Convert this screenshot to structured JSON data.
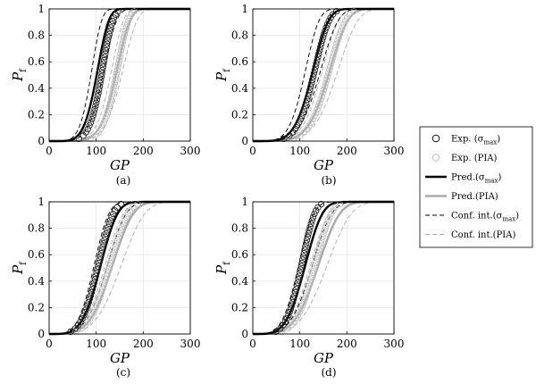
{
  "figure": {
    "legend": {
      "placement": "right",
      "entries": [
        {
          "label": "Exp. (σ",
          "sub": "max",
          "tail": ")",
          "kind": "marker",
          "color": "#111111"
        },
        {
          "label": "Exp. (PIA)",
          "sub": "",
          "tail": "",
          "kind": "marker",
          "color": "#bbbbbb"
        },
        {
          "label": "Pred.(σ",
          "sub": "max",
          "tail": ")",
          "kind": "solid",
          "color": "#000000"
        },
        {
          "label": "Pred.(PIA)",
          "sub": "",
          "tail": "",
          "kind": "solid",
          "color": "#aaaaaa"
        },
        {
          "label": "Conf. int.(σ",
          "sub": "max",
          "tail": ")",
          "kind": "dashed",
          "color": "#000000"
        },
        {
          "label": "Conf. int.(PIA)",
          "sub": "",
          "tail": "",
          "kind": "dashed",
          "color": "#aaaaaa"
        }
      ]
    }
  },
  "chart_data": [
    {
      "type": "line",
      "caption": "(a)",
      "xlabel": "GP",
      "ylabel": "P",
      "ylabel_sub": "f",
      "xlim": [
        0,
        300
      ],
      "ylim": [
        0,
        1
      ],
      "xticks": [
        0,
        100,
        200,
        300
      ],
      "yticks": [
        0,
        0.2,
        0.4,
        0.6,
        0.8,
        1
      ],
      "ytick_labels": [
        "0",
        "0.2",
        "0.4",
        "0.6",
        "0.8",
        "1"
      ],
      "grid": true,
      "weibull": {
        "pred_sigma": {
          "m": 5.5,
          "s": 108
        },
        "pred_pia": {
          "m": 6.5,
          "s": 150
        },
        "ci_sigma_lo": {
          "m": 5.5,
          "s": 95
        },
        "ci_sigma_hi": {
          "m": 5.5,
          "s": 122
        },
        "ci_pia_lo": {
          "m": 6.5,
          "s": 138
        },
        "ci_pia_hi": {
          "m": 6.5,
          "s": 163
        }
      },
      "exp_sigma": {
        "m": 6.5,
        "s": 118,
        "n": 40
      },
      "exp_pia": {
        "m": 7.5,
        "s": 150,
        "n": 40
      }
    },
    {
      "type": "line",
      "caption": "(b)",
      "xlabel": "GP",
      "ylabel": "P",
      "ylabel_sub": "f",
      "xlim": [
        0,
        300
      ],
      "ylim": [
        0,
        1
      ],
      "xticks": [
        0,
        100,
        200,
        300
      ],
      "yticks": [
        0,
        0.2,
        0.4,
        0.6,
        0.8,
        1
      ],
      "ytick_labels": [
        "0",
        "0.2",
        "0.4",
        "0.6",
        "0.8",
        "1"
      ],
      "grid": true,
      "weibull": {
        "pred_sigma": {
          "m": 5.0,
          "s": 135
        },
        "pred_pia": {
          "m": 5.5,
          "s": 172
        },
        "ci_sigma_lo": {
          "m": 5.0,
          "s": 118
        },
        "ci_sigma_hi": {
          "m": 5.0,
          "s": 152
        },
        "ci_pia_lo": {
          "m": 5.5,
          "s": 155
        },
        "ci_pia_hi": {
          "m": 5.5,
          "s": 190
        }
      },
      "exp_sigma": {
        "m": 5.5,
        "s": 138,
        "n": 40
      },
      "exp_pia": {
        "m": 6.0,
        "s": 170,
        "n": 40
      }
    },
    {
      "type": "line",
      "caption": "(c)",
      "xlabel": "GP",
      "ylabel": "P",
      "ylabel_sub": "f",
      "xlim": [
        0,
        300
      ],
      "ylim": [
        0,
        1
      ],
      "xticks": [
        0,
        100,
        200,
        300
      ],
      "yticks": [
        0,
        0.2,
        0.4,
        0.6,
        0.8,
        1
      ],
      "ytick_labels": [
        "0",
        "0.2",
        "0.4",
        "0.6",
        "0.8",
        "1"
      ],
      "grid": true,
      "weibull": {
        "pred_sigma": {
          "m": 4.2,
          "s": 118
        },
        "pred_pia": {
          "m": 4.2,
          "s": 145
        },
        "ci_sigma_lo": {
          "m": 4.2,
          "s": 103
        },
        "ci_sigma_hi": {
          "m": 4.2,
          "s": 133
        },
        "ci_pia_lo": {
          "m": 4.2,
          "s": 128
        },
        "ci_pia_hi": {
          "m": 4.2,
          "s": 165
        }
      },
      "exp_sigma": {
        "m": 4.5,
        "s": 112,
        "n": 40
      },
      "exp_pia": {
        "m": 4.5,
        "s": 138,
        "n": 40
      }
    },
    {
      "type": "line",
      "caption": "(d)",
      "xlabel": "GP",
      "ylabel": "P",
      "ylabel_sub": "f",
      "xlim": [
        0,
        300
      ],
      "ylim": [
        0,
        1
      ],
      "xticks": [
        0,
        100,
        200,
        300
      ],
      "yticks": [
        0,
        0.2,
        0.4,
        0.6,
        0.8,
        1
      ],
      "ytick_labels": [
        "0",
        "0.2",
        "0.4",
        "0.6",
        "0.8",
        "1"
      ],
      "grid": true,
      "weibull": {
        "pred_sigma": {
          "m": 4.2,
          "s": 120
        },
        "pred_pia": {
          "m": 4.2,
          "s": 150
        },
        "ci_sigma_lo": {
          "m": 4.2,
          "s": 105
        },
        "ci_sigma_hi": {
          "m": 4.2,
          "s": 136
        },
        "ci_pia_lo": {
          "m": 4.2,
          "s": 132
        },
        "ci_pia_hi": {
          "m": 4.2,
          "s": 170
        }
      },
      "exp_sigma": {
        "m": 5.0,
        "s": 110,
        "n": 40
      },
      "exp_pia": {
        "m": 5.0,
        "s": 140,
        "n": 40
      }
    }
  ]
}
